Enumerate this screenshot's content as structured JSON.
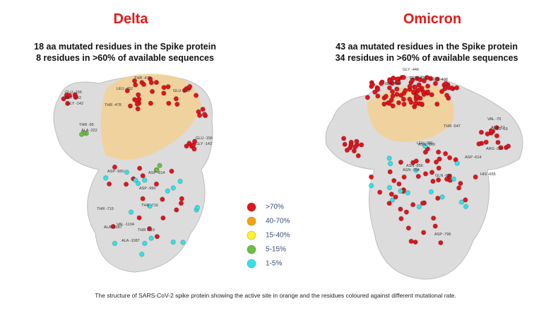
{
  "panels": [
    {
      "title": "Delta",
      "lines": [
        "18 aa mutated residues in the Spike protein",
        "8 residues in >60% of available sequences"
      ],
      "labels": [
        "GLU -156",
        "GLY -142",
        "THR -478",
        "LEU -452",
        "GLU -156",
        "GLY -142",
        "THR -478",
        "THR -95",
        "ALA -222",
        "GLU -156",
        "GLY -142",
        "ASP -950",
        "ASP -614",
        "ASP -950",
        "THR -719",
        "THR -716",
        "ALA -1087",
        "VAL -1104",
        "THR -719",
        "ALA -1087"
      ]
    },
    {
      "title": "Omicron",
      "lines": [
        "43 aa mutated residues in the Spike protein",
        "34 residues in >60% of available sequences"
      ],
      "labels": [
        "GLY -446",
        "GLN -493",
        "GLN -498",
        "GLY -142",
        "VAL -70",
        "ALA -67",
        "HIS -69",
        "THR -547",
        "ARG -214",
        "ASP -614",
        "ASN -856",
        "HIS -655",
        "ASN -969",
        "ASN -764",
        "GLN -954",
        "LEU -981",
        "ASP -796"
      ]
    }
  ],
  "legend": [
    {
      "label": ">70%",
      "color": "#e0141c"
    },
    {
      "label": "40-70%",
      "color": "#f5a20f"
    },
    {
      "label": "15-40%",
      "color": "#fff22a"
    },
    {
      "label": "5-15%",
      "color": "#6cbf45"
    },
    {
      "label": "1-5%",
      "color": "#2fe3ea"
    }
  ],
  "caption": "The structure of SARS-CoV-2 spike protein showing the active site in orange and the residues coloured against different mutational rate."
}
